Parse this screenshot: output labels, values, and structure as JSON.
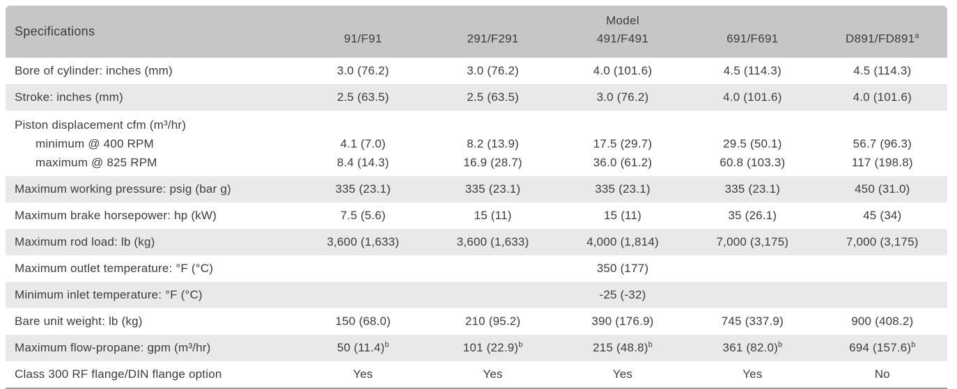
{
  "table": {
    "corner_header": "Specifications",
    "group_header": "Model",
    "columns": [
      {
        "label": "91/F91",
        "sup": ""
      },
      {
        "label": "291/F291",
        "sup": ""
      },
      {
        "label": "491/F491",
        "sup": ""
      },
      {
        "label": "691/F691",
        "sup": ""
      },
      {
        "label": "D891/FD891",
        "sup": "a"
      }
    ],
    "rows": [
      {
        "label": "Bore of cylinder: inches (mm)",
        "shaded": false,
        "values": [
          "3.0 (76.2)",
          "3.0 (76.2)",
          "4.0 (101.6)",
          "4.5 (114.3)",
          "4.5 (114.3)"
        ]
      },
      {
        "label": "Stroke: inches (mm)",
        "shaded": true,
        "values": [
          "2.5 (63.5)",
          "2.5 (63.5)",
          "3.0 (76.2)",
          "4.0 (101.6)",
          "4.0 (101.6)"
        ]
      },
      {
        "label": "Piston displacement cfm (m³/hr)",
        "shaded": false,
        "sublabels": [
          "minimum @ 400 RPM",
          "maximum @ 825 RPM"
        ],
        "subvalues": [
          [
            "4.1 (7.0)",
            "8.2 (13.9)",
            "17.5 (29.7)",
            "29.5 (50.1)",
            "56.7 (96.3)"
          ],
          [
            "8.4 (14.3)",
            "16.9 (28.7)",
            "36.0 (61.2)",
            "60.8 (103.3)",
            "117 (198.8)"
          ]
        ]
      },
      {
        "label": "Maximum working pressure: psig (bar g)",
        "shaded": true,
        "values": [
          "335 (23.1)",
          "335 (23.1)",
          "335 (23.1)",
          "335 (23.1)",
          "450 (31.0)"
        ]
      },
      {
        "label": "Maximum brake horsepower: hp (kW)",
        "shaded": false,
        "values": [
          "7.5 (5.6)",
          "15 (11)",
          "15 (11)",
          "35 (26.1)",
          "45 (34)"
        ]
      },
      {
        "label": "Maximum rod load: lb (kg)",
        "shaded": true,
        "values": [
          "3,600 (1,633)",
          "3,600 (1,633)",
          "4,000 (1,814)",
          "7,000 (3,175)",
          "7,000 (3,175)"
        ]
      },
      {
        "label": "Maximum outlet temperature: °F (°C)",
        "shaded": false,
        "values": [
          "",
          "",
          "350 (177)",
          "",
          ""
        ]
      },
      {
        "label": "Minimum inlet temperature: °F (°C)",
        "shaded": true,
        "values": [
          "",
          "",
          "-25 (-32)",
          "",
          ""
        ]
      },
      {
        "label": "Bare unit weight: lb (kg)",
        "shaded": false,
        "values": [
          "150 (68.0)",
          "210 (95.2)",
          "390 (176.9)",
          "745 (337.9)",
          "900 (408.2)"
        ]
      },
      {
        "label": "Maximum flow-propane: gpm (m³/hr)",
        "shaded": true,
        "value_sup": "b",
        "values": [
          "50 (11.4)",
          "101 (22.9)",
          "215 (48.8)",
          "361 (82.0)",
          "694 (157.6)"
        ]
      },
      {
        "label": "Class 300 RF flange/DIN flange option",
        "shaded": false,
        "values": [
          "Yes",
          "Yes",
          "Yes",
          "Yes",
          "No"
        ]
      }
    ],
    "colors": {
      "header_bg": "#c6c6c6",
      "stripe_bg": "#e9e9e9",
      "text": "#3c3c3c",
      "bottom_border": "#9b9b9b"
    }
  }
}
